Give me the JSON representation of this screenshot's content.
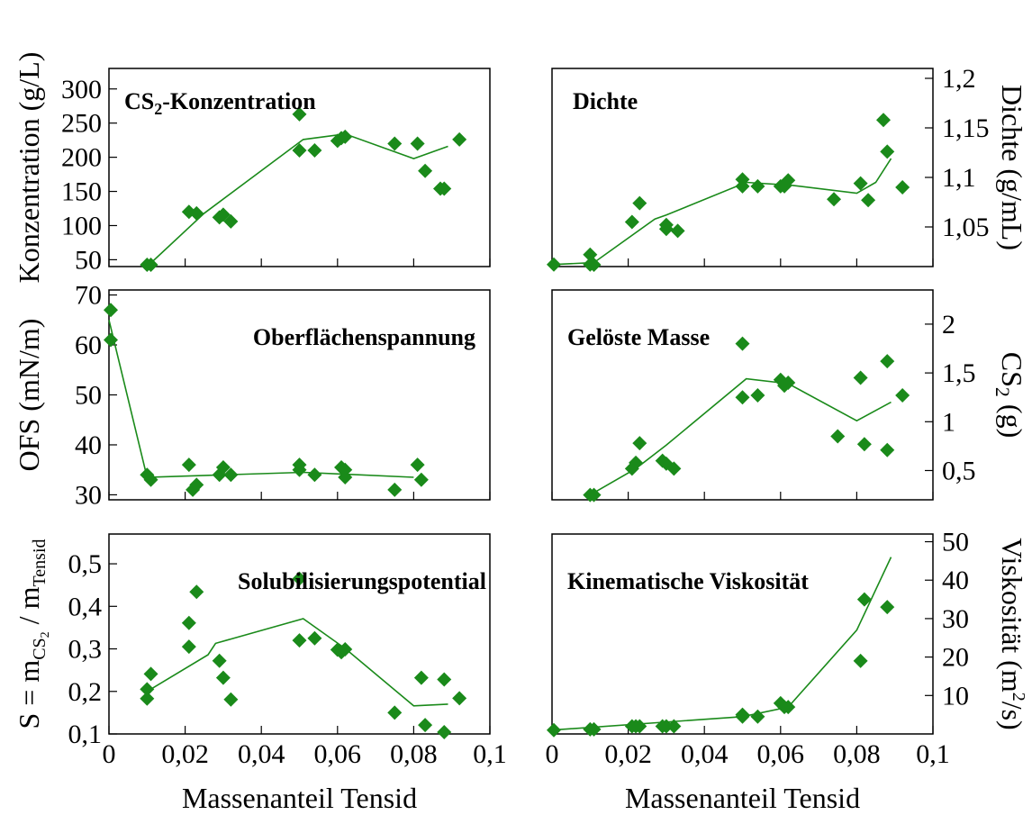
{
  "figure": {
    "xlabel": "Massenanteil Tensid",
    "marker_color": "#1a8a1a",
    "line_color": "#1a8a1a"
  },
  "chart_data": [
    {
      "id": "konzentration",
      "type": "scatter",
      "title_main": "CS",
      "title_sub": "2",
      "title_rest": "-Konzentration",
      "ylabel": "Konzentration (g/L)",
      "yaxis_side": "left",
      "xlim": [
        0,
        0.1
      ],
      "ylim": [
        40,
        330
      ],
      "yticks": [
        50,
        100,
        150,
        200,
        250,
        300
      ],
      "ytick_labels": [
        "50",
        "100",
        "150",
        "200",
        "250",
        "300"
      ],
      "points": [
        [
          0.01,
          40
        ],
        [
          0.011,
          42
        ],
        [
          0.021,
          120
        ],
        [
          0.023,
          118
        ],
        [
          0.029,
          112
        ],
        [
          0.03,
          116
        ],
        [
          0.032,
          106
        ],
        [
          0.05,
          263
        ],
        [
          0.05,
          210
        ],
        [
          0.054,
          210
        ],
        [
          0.06,
          224
        ],
        [
          0.061,
          228
        ],
        [
          0.062,
          230
        ],
        [
          0.075,
          220
        ],
        [
          0.081,
          220
        ],
        [
          0.083,
          180
        ],
        [
          0.087,
          154
        ],
        [
          0.088,
          154
        ],
        [
          0.092,
          226
        ]
      ],
      "line": [
        [
          0.01,
          40
        ],
        [
          0.025,
          118
        ],
        [
          0.051,
          226
        ],
        [
          0.062,
          234
        ],
        [
          0.08,
          198
        ],
        [
          0.089,
          216
        ]
      ]
    },
    {
      "id": "dichte",
      "type": "scatter",
      "title": "Dichte",
      "ylabel": "Dichte (g/mL)",
      "yaxis_side": "right",
      "xlim": [
        0,
        0.1
      ],
      "ylim": [
        1.01,
        1.21
      ],
      "yticks": [
        1.05,
        1.1,
        1.15,
        1.2
      ],
      "ytick_labels": [
        "1,05",
        "1,1",
        "1,15",
        "1,2"
      ],
      "points": [
        [
          0.0,
          1.012
        ],
        [
          0.01,
          1.022
        ],
        [
          0.01,
          1.012
        ],
        [
          0.011,
          1.008
        ],
        [
          0.021,
          1.055
        ],
        [
          0.023,
          1.074
        ],
        [
          0.03,
          1.048
        ],
        [
          0.03,
          1.052
        ],
        [
          0.033,
          1.046
        ],
        [
          0.05,
          1.098
        ],
        [
          0.05,
          1.091
        ],
        [
          0.054,
          1.091
        ],
        [
          0.06,
          1.091
        ],
        [
          0.061,
          1.091
        ],
        [
          0.062,
          1.097
        ],
        [
          0.074,
          1.078
        ],
        [
          0.081,
          1.094
        ],
        [
          0.083,
          1.077
        ],
        [
          0.087,
          1.158
        ],
        [
          0.088,
          1.126
        ],
        [
          0.092,
          1.09
        ]
      ],
      "line": [
        [
          0.0,
          1.012
        ],
        [
          0.011,
          1.014
        ],
        [
          0.027,
          1.058
        ],
        [
          0.03,
          1.062
        ],
        [
          0.051,
          1.095
        ],
        [
          0.063,
          1.092
        ],
        [
          0.08,
          1.084
        ],
        [
          0.085,
          1.095
        ],
        [
          0.089,
          1.119
        ]
      ]
    },
    {
      "id": "oberflaechenspannung",
      "type": "scatter",
      "title": "Oberflächenspannung",
      "ylabel": "OFS (mN/m)",
      "yaxis_side": "left",
      "xlim": [
        0,
        0.1
      ],
      "ylim": [
        29,
        71
      ],
      "yticks": [
        30,
        40,
        50,
        60,
        70
      ],
      "ytick_labels": [
        "30",
        "40",
        "50",
        "60",
        "70"
      ],
      "points": [
        [
          0.0,
          67
        ],
        [
          0.0,
          61
        ],
        [
          0.01,
          34
        ],
        [
          0.011,
          33
        ],
        [
          0.021,
          36
        ],
        [
          0.022,
          31
        ],
        [
          0.023,
          32
        ],
        [
          0.029,
          34
        ],
        [
          0.03,
          35.5
        ],
        [
          0.032,
          34
        ],
        [
          0.05,
          36
        ],
        [
          0.05,
          35
        ],
        [
          0.054,
          34
        ],
        [
          0.061,
          35.5
        ],
        [
          0.062,
          33.5
        ],
        [
          0.062,
          35
        ],
        [
          0.075,
          31
        ],
        [
          0.081,
          36
        ],
        [
          0.082,
          33
        ]
      ],
      "line": [
        [
          0.0,
          65
        ],
        [
          0.01,
          33.5
        ],
        [
          0.051,
          34.5
        ],
        [
          0.08,
          33.5
        ]
      ]
    },
    {
      "id": "geloeste-masse",
      "type": "scatter",
      "title": "Gelöste Masse",
      "ylabel_main": "CS",
      "ylabel_sub": "2",
      "ylabel_rest": " (g)",
      "yaxis_side": "right",
      "xlim": [
        0,
        0.1
      ],
      "ylim": [
        0.2,
        2.35
      ],
      "yticks": [
        0.5,
        1.0,
        1.5,
        2.0
      ],
      "ytick_labels": [
        "0,5",
        "1",
        "1,5",
        "2"
      ],
      "points": [
        [
          0.01,
          0.25
        ],
        [
          0.011,
          0.25
        ],
        [
          0.021,
          0.52
        ],
        [
          0.022,
          0.58
        ],
        [
          0.023,
          0.78
        ],
        [
          0.029,
          0.6
        ],
        [
          0.03,
          0.57
        ],
        [
          0.032,
          0.52
        ],
        [
          0.05,
          1.8
        ],
        [
          0.05,
          1.25
        ],
        [
          0.054,
          1.27
        ],
        [
          0.06,
          1.43
        ],
        [
          0.061,
          1.37
        ],
        [
          0.062,
          1.4
        ],
        [
          0.075,
          0.85
        ],
        [
          0.081,
          1.45
        ],
        [
          0.082,
          0.77
        ],
        [
          0.088,
          1.62
        ],
        [
          0.088,
          0.71
        ],
        [
          0.092,
          1.27
        ]
      ],
      "line": [
        [
          0.01,
          0.25
        ],
        [
          0.022,
          0.52
        ],
        [
          0.03,
          0.76
        ],
        [
          0.051,
          1.44
        ],
        [
          0.062,
          1.39
        ],
        [
          0.08,
          1.01
        ],
        [
          0.089,
          1.2
        ]
      ]
    },
    {
      "id": "solubilisierungspotential",
      "type": "scatter",
      "title": "Solubilisierungspotential",
      "ylabel_main": "S = m",
      "ylabel_sub1": "CS",
      "ylabel_subsub": "2",
      "ylabel_mid": " / m",
      "ylabel_sub2": "Tensid",
      "yaxis_side": "left",
      "xlim": [
        0,
        0.1
      ],
      "ylim": [
        0.1,
        0.57
      ],
      "yticks": [
        0.1,
        0.2,
        0.3,
        0.4,
        0.5
      ],
      "ytick_labels": [
        "0,1",
        "0,2",
        "0,3",
        "0,4",
        "0,5"
      ],
      "xticks": [
        0,
        0.02,
        0.04,
        0.06,
        0.08,
        0.1
      ],
      "xtick_labels": [
        "0",
        "0,02",
        "0,04",
        "0,06",
        "0,08",
        "0,1"
      ],
      "points": [
        [
          0.01,
          0.205
        ],
        [
          0.01,
          0.183
        ],
        [
          0.011,
          0.241
        ],
        [
          0.021,
          0.361
        ],
        [
          0.021,
          0.305
        ],
        [
          0.023,
          0.434
        ],
        [
          0.029,
          0.272
        ],
        [
          0.03,
          0.232
        ],
        [
          0.032,
          0.181
        ],
        [
          0.05,
          0.465
        ],
        [
          0.05,
          0.32
        ],
        [
          0.054,
          0.325
        ],
        [
          0.06,
          0.298
        ],
        [
          0.061,
          0.292
        ],
        [
          0.062,
          0.299
        ],
        [
          0.075,
          0.15
        ],
        [
          0.082,
          0.232
        ],
        [
          0.083,
          0.121
        ],
        [
          0.088,
          0.228
        ],
        [
          0.088,
          0.1
        ],
        [
          0.092,
          0.184
        ]
      ],
      "line": [
        [
          0.01,
          0.2
        ],
        [
          0.026,
          0.286
        ],
        [
          0.028,
          0.313
        ],
        [
          0.051,
          0.371
        ],
        [
          0.062,
          0.301
        ],
        [
          0.08,
          0.166
        ],
        [
          0.089,
          0.17
        ]
      ]
    },
    {
      "id": "kinematische-viskositaet",
      "type": "scatter",
      "title": "Kinematische Viskosität",
      "ylabel_main": "Viskosität (m",
      "ylabel_sup": "2",
      "ylabel_rest": "/s)",
      "yaxis_side": "right",
      "xlim": [
        0,
        0.1
      ],
      "ylim": [
        0,
        52
      ],
      "yticks": [
        10,
        20,
        30,
        40,
        50
      ],
      "ytick_labels": [
        "10",
        "20",
        "30",
        "40",
        "50"
      ],
      "xticks": [
        0,
        0.02,
        0.04,
        0.06,
        0.08,
        0.1
      ],
      "xtick_labels": [
        "0",
        "0,02",
        "0,04",
        "0,06",
        "0,08",
        "0,1"
      ],
      "points": [
        [
          0.0,
          1
        ],
        [
          0.01,
          1.2
        ],
        [
          0.011,
          1.2
        ],
        [
          0.021,
          2
        ],
        [
          0.022,
          2
        ],
        [
          0.023,
          2
        ],
        [
          0.029,
          2
        ],
        [
          0.03,
          2
        ],
        [
          0.032,
          2
        ],
        [
          0.05,
          5
        ],
        [
          0.05,
          4.5
        ],
        [
          0.054,
          4.5
        ],
        [
          0.06,
          8
        ],
        [
          0.061,
          7
        ],
        [
          0.062,
          7
        ],
        [
          0.081,
          19
        ],
        [
          0.082,
          35
        ],
        [
          0.088,
          33
        ]
      ],
      "line": [
        [
          0.0,
          1
        ],
        [
          0.05,
          4.5
        ],
        [
          0.062,
          7
        ],
        [
          0.08,
          27
        ],
        [
          0.089,
          46
        ]
      ]
    }
  ]
}
